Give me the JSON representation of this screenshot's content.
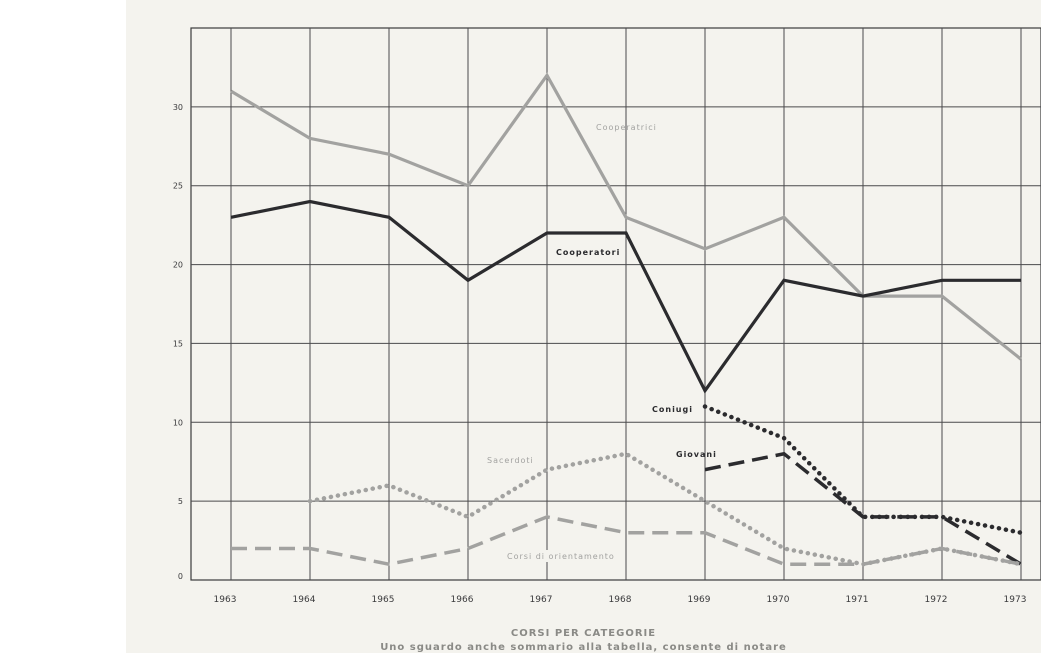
{
  "chart_data": {
    "type": "line",
    "title": "CORSI PER CATEGORIE",
    "subtitle": "Uno sguardo anche sommario alla tabella, consente di notare",
    "xlabel": "",
    "ylabel": "",
    "x": [
      "1963",
      "1964",
      "1965",
      "1966",
      "1967",
      "1968",
      "1969",
      "1970",
      "1971",
      "1972",
      "1973"
    ],
    "ylim": [
      0,
      35
    ],
    "yticks": [
      0,
      5,
      10,
      15,
      20,
      25,
      30
    ],
    "grid": true,
    "series": [
      {
        "name": "Cooperatrici",
        "values": [
          31,
          28,
          27,
          25,
          32,
          23,
          21,
          23,
          18,
          18,
          14
        ],
        "color": "#a2a2a0",
        "style": "solid"
      },
      {
        "name": "Cooperatori",
        "values": [
          23,
          24,
          23,
          19,
          22,
          22,
          12,
          19,
          18,
          19,
          19
        ],
        "color": "#2b2b2e",
        "style": "solid"
      },
      {
        "name": "Coniugi",
        "values": [
          null,
          null,
          null,
          null,
          null,
          null,
          11,
          9,
          4,
          4,
          3
        ],
        "color": "#2b2b2e",
        "style": "dotted"
      },
      {
        "name": "Giovani",
        "values": [
          null,
          null,
          null,
          null,
          null,
          null,
          7,
          8,
          4,
          4,
          1
        ],
        "color": "#2b2b2e",
        "style": "dashed"
      },
      {
        "name": "Sacerdoti",
        "values": [
          null,
          5,
          6,
          4,
          7,
          8,
          5,
          2,
          1,
          2,
          1
        ],
        "color": "#a2a2a0",
        "style": "dotted"
      },
      {
        "name": "Corsi di orientamento",
        "values": [
          2,
          2,
          1,
          2,
          4,
          3,
          3,
          1,
          1,
          2,
          1
        ],
        "color": "#a2a2a0",
        "style": "dashed"
      }
    ]
  }
}
